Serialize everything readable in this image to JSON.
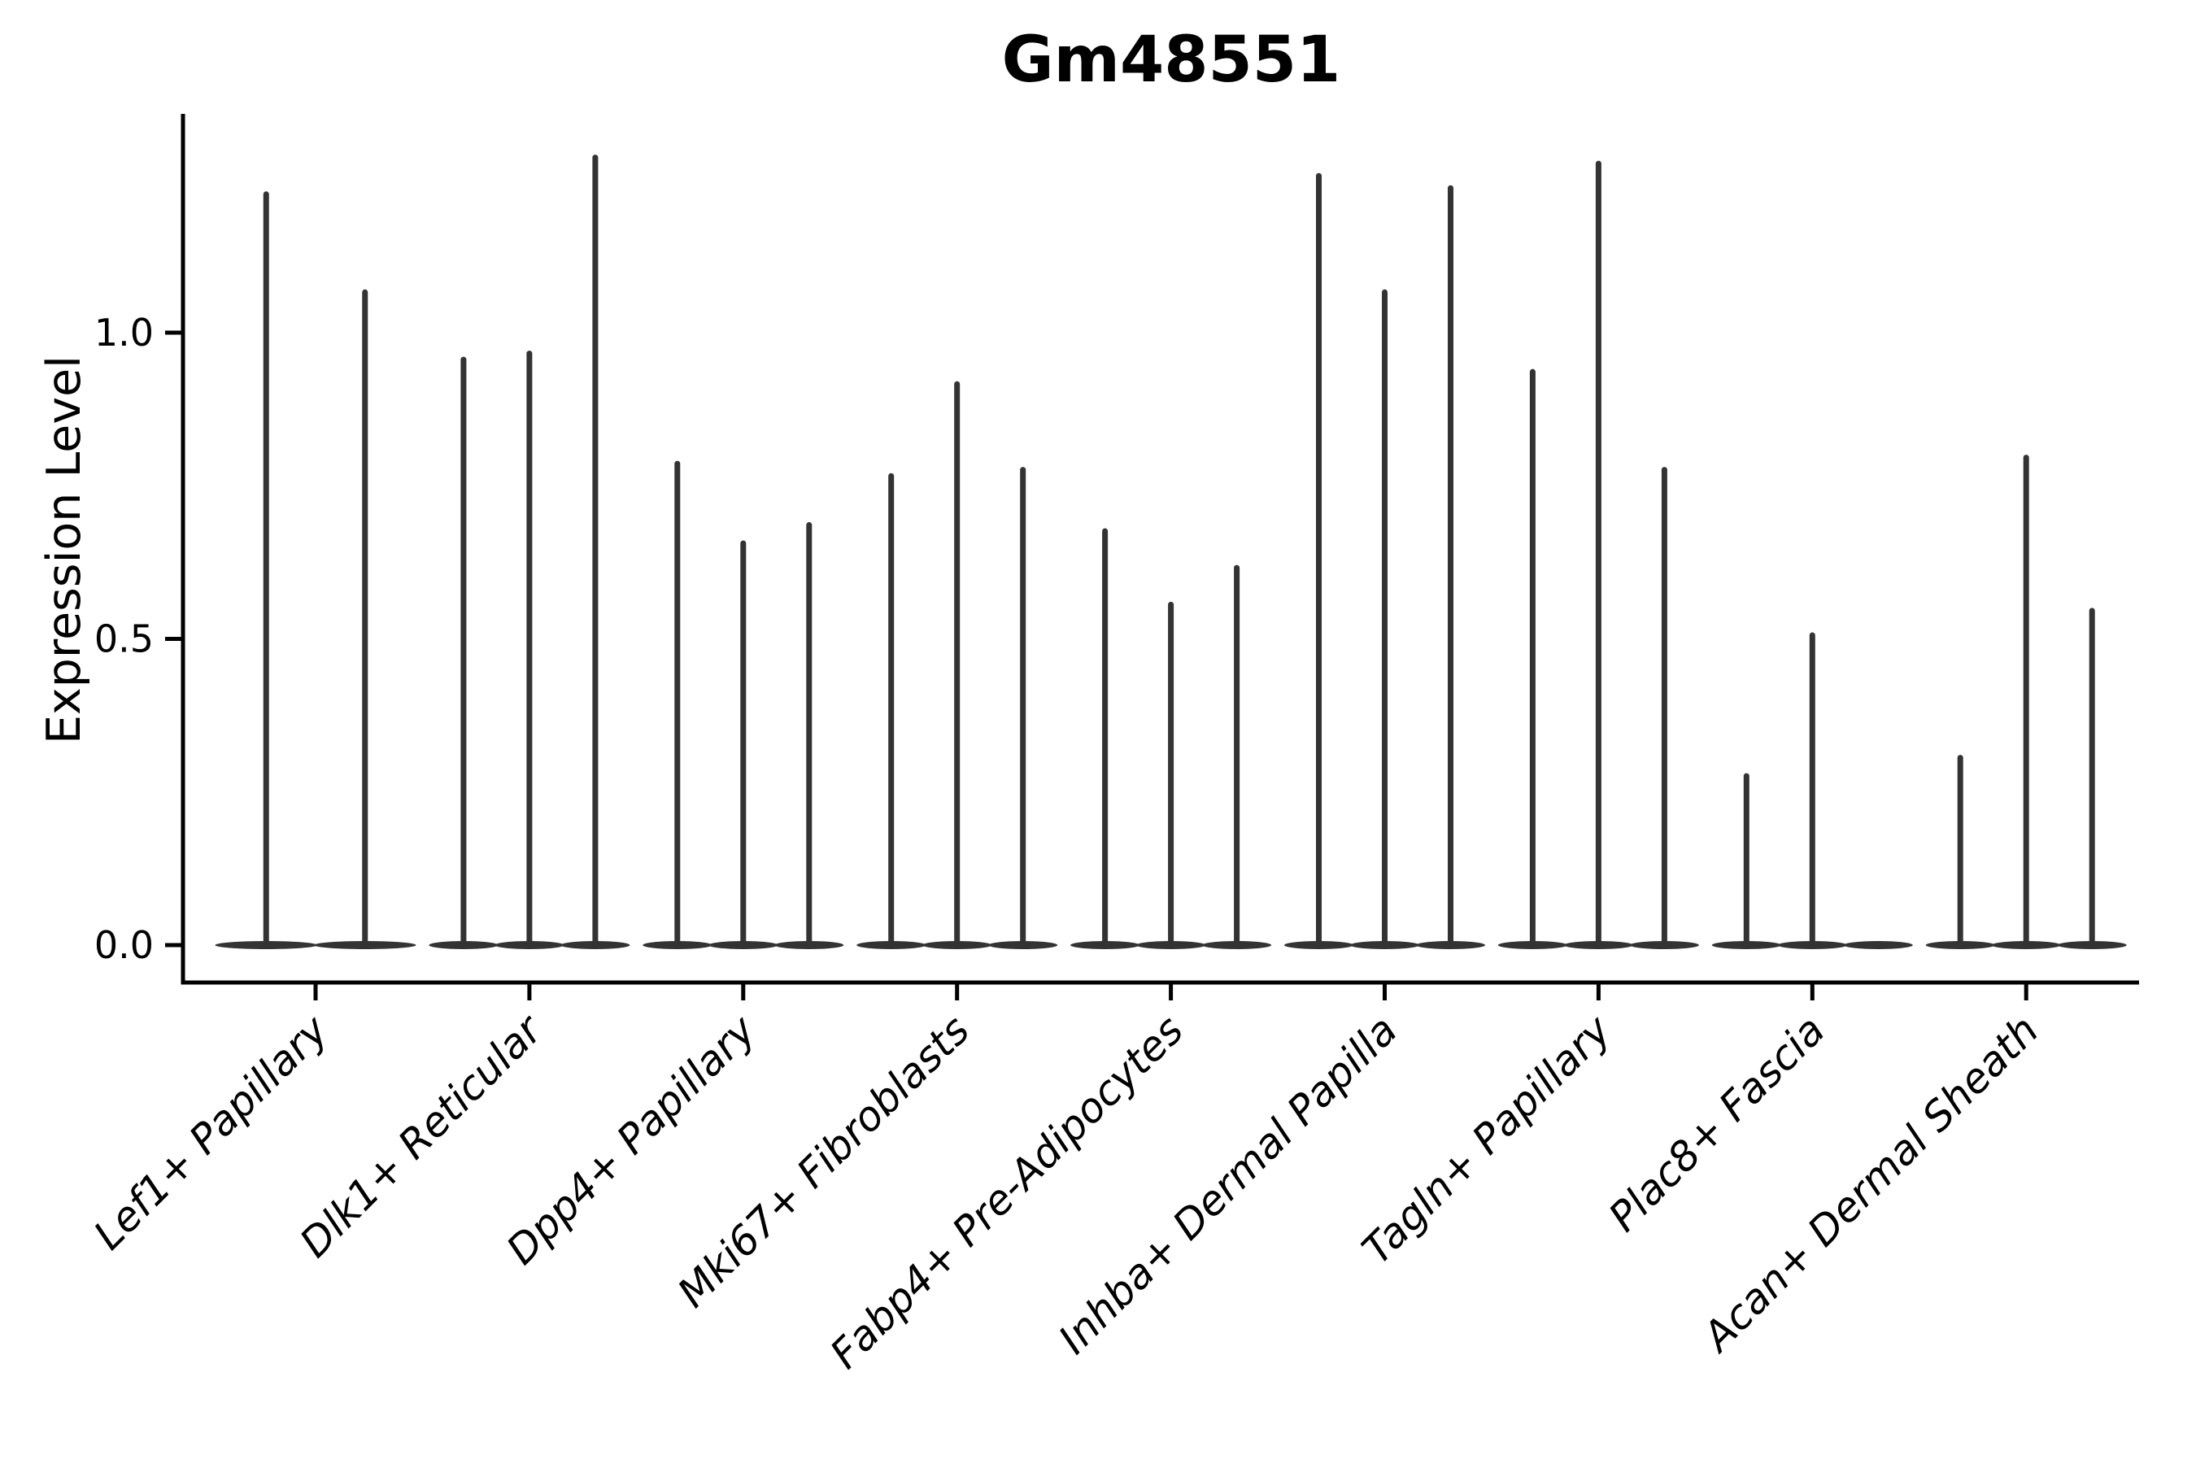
{
  "title": "Gm48551",
  "y_axis": {
    "label": "Expression Level",
    "tick_labels": [
      "0.0",
      "0.5",
      "1.0"
    ]
  },
  "chart_data": {
    "type": "violin",
    "title": "Gm48551",
    "xlabel": "",
    "ylabel": "Expression Level",
    "ylim": [
      -0.06,
      1.36
    ],
    "yticks": [
      0.0,
      0.5,
      1.0
    ],
    "ytick_labels": [
      "0.0",
      "0.5",
      "1.0"
    ],
    "grid": false,
    "legend": "none",
    "x_tick_rotation_deg": 45,
    "categories": [
      "Lef1+ Papillary",
      "Dlk1+ Reticular",
      "Dpp4+ Papillary",
      "Mki67+ Fibroblasts",
      "Fabp4+ Pre-Adipocytes",
      "Inhba+ Dermal Papilla",
      "Tagln+ Papillary",
      "Plac8+ Fascia",
      "Acan+ Dermal Sheath"
    ],
    "description": "Single-cell violin plot; per category 2-3 narrow violins: dense flat body at 0 expression plus a thin spike reaching the max expression value (0 = flat violin only).",
    "groups": [
      {
        "category": "Lef1+ Papillary",
        "violin_max_values": [
          1.23,
          1.07
        ]
      },
      {
        "category": "Dlk1+ Reticular",
        "violin_max_values": [
          0.96,
          0.97,
          1.29
        ]
      },
      {
        "category": "Dpp4+ Papillary",
        "violin_max_values": [
          0.79,
          0.66,
          0.69
        ]
      },
      {
        "category": "Mki67+ Fibroblasts",
        "violin_max_values": [
          0.77,
          0.92,
          0.78
        ]
      },
      {
        "category": "Fabp4+ Pre-Adipocytes",
        "violin_max_values": [
          0.68,
          0.56,
          0.62
        ]
      },
      {
        "category": "Inhba+ Dermal Papilla",
        "violin_max_values": [
          1.26,
          1.07,
          1.24
        ]
      },
      {
        "category": "Tagln+ Papillary",
        "violin_max_values": [
          0.94,
          1.28,
          0.78
        ]
      },
      {
        "category": "Plac8+ Fascia",
        "violin_max_values": [
          0.28,
          0.51,
          0.0
        ]
      },
      {
        "category": "Acan+ Dermal Sheath",
        "violin_max_values": [
          0.31,
          0.8,
          0.55
        ]
      }
    ],
    "colors": {
      "violin": "#333333",
      "axis": "#000000",
      "text": "#000000",
      "background": "#ffffff"
    }
  }
}
